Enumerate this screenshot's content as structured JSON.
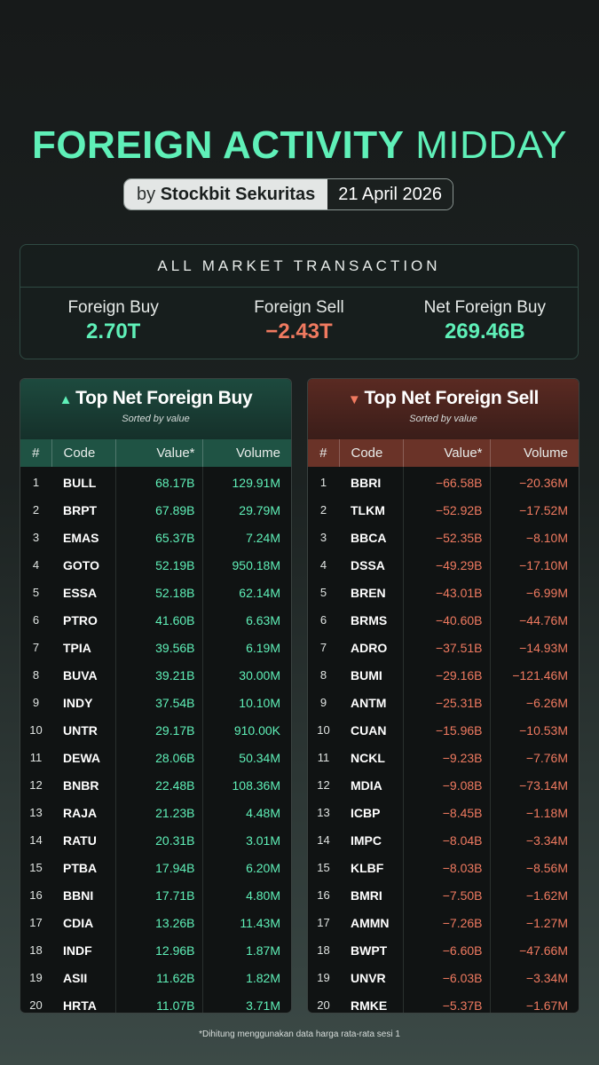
{
  "header": {
    "title_bold": "FOREIGN ACTIVITY",
    "title_light": "MIDDAY",
    "by_prefix": "by",
    "broker": "Stockbit Sekuritas",
    "date": "21 April 2026"
  },
  "market": {
    "heading": "ALL MARKET TRANSACTION",
    "stats": [
      {
        "label": "Foreign Buy",
        "value": "2.70T"
      },
      {
        "label": "Foreign Sell",
        "value": "−2.43T"
      },
      {
        "label": "Net Foreign Buy",
        "value": "269.46B"
      }
    ]
  },
  "buy_panel": {
    "icon": "triangle-up",
    "title": "Top Net Foreign Buy",
    "subtitle": "Sorted by value",
    "columns": [
      "#",
      "Code",
      "Value*",
      "Volume"
    ],
    "rows": [
      [
        "1",
        "BULL",
        "68.17B",
        "129.91M"
      ],
      [
        "2",
        "BRPT",
        "67.89B",
        "29.79M"
      ],
      [
        "3",
        "EMAS",
        "65.37B",
        "7.24M"
      ],
      [
        "4",
        "GOTO",
        "52.19B",
        "950.18M"
      ],
      [
        "5",
        "ESSA",
        "52.18B",
        "62.14M"
      ],
      [
        "6",
        "PTRO",
        "41.60B",
        "6.63M"
      ],
      [
        "7",
        "TPIA",
        "39.56B",
        "6.19M"
      ],
      [
        "8",
        "BUVA",
        "39.21B",
        "30.00M"
      ],
      [
        "9",
        "INDY",
        "37.54B",
        "10.10M"
      ],
      [
        "10",
        "UNTR",
        "29.17B",
        "910.00K"
      ],
      [
        "11",
        "DEWA",
        "28.06B",
        "50.34M"
      ],
      [
        "12",
        "BNBR",
        "22.48B",
        "108.36M"
      ],
      [
        "13",
        "RAJA",
        "21.23B",
        "4.48M"
      ],
      [
        "14",
        "RATU",
        "20.31B",
        "3.01M"
      ],
      [
        "15",
        "PTBA",
        "17.94B",
        "6.20M"
      ],
      [
        "16",
        "BBNI",
        "17.71B",
        "4.80M"
      ],
      [
        "17",
        "CDIA",
        "13.26B",
        "11.43M"
      ],
      [
        "18",
        "INDF",
        "12.96B",
        "1.87M"
      ],
      [
        "19",
        "ASII",
        "11.62B",
        "1.82M"
      ],
      [
        "20",
        "HRTA",
        "11.07B",
        "3.71M"
      ]
    ]
  },
  "sell_panel": {
    "icon": "triangle-down",
    "title": "Top Net Foreign Sell",
    "subtitle": "Sorted by value",
    "columns": [
      "#",
      "Code",
      "Value*",
      "Volume"
    ],
    "rows": [
      [
        "1",
        "BBRI",
        "−66.58B",
        "−20.36M"
      ],
      [
        "2",
        "TLKM",
        "−52.92B",
        "−17.52M"
      ],
      [
        "3",
        "BBCA",
        "−52.35B",
        "−8.10M"
      ],
      [
        "4",
        "DSSA",
        "−49.29B",
        "−17.10M"
      ],
      [
        "5",
        "BREN",
        "−43.01B",
        "−6.99M"
      ],
      [
        "6",
        "BRMS",
        "−40.60B",
        "−44.76M"
      ],
      [
        "7",
        "ADRO",
        "−37.51B",
        "−14.93M"
      ],
      [
        "8",
        "BUMI",
        "−29.16B",
        "−121.46M"
      ],
      [
        "9",
        "ANTM",
        "−25.31B",
        "−6.26M"
      ],
      [
        "10",
        "CUAN",
        "−15.96B",
        "−10.53M"
      ],
      [
        "11",
        "NCKL",
        "−9.23B",
        "−7.76M"
      ],
      [
        "12",
        "MDIA",
        "−9.08B",
        "−73.14M"
      ],
      [
        "13",
        "ICBP",
        "−8.45B",
        "−1.18M"
      ],
      [
        "14",
        "IMPC",
        "−8.04B",
        "−3.34M"
      ],
      [
        "15",
        "KLBF",
        "−8.03B",
        "−8.56M"
      ],
      [
        "16",
        "BMRI",
        "−7.50B",
        "−1.62M"
      ],
      [
        "17",
        "AMMN",
        "−7.26B",
        "−1.27M"
      ],
      [
        "18",
        "BWPT",
        "−6.60B",
        "−47.66M"
      ],
      [
        "19",
        "UNVR",
        "−6.03B",
        "−3.34M"
      ],
      [
        "20",
        "RMKE",
        "−5.37B",
        "−1.67M"
      ]
    ]
  },
  "footnote": "*Dihitung menggunakan data harga rata-rata sesi 1",
  "colors": {
    "positive": "#5ff0b8",
    "negative": "#f07a60",
    "accent": "#5ff0b8"
  }
}
